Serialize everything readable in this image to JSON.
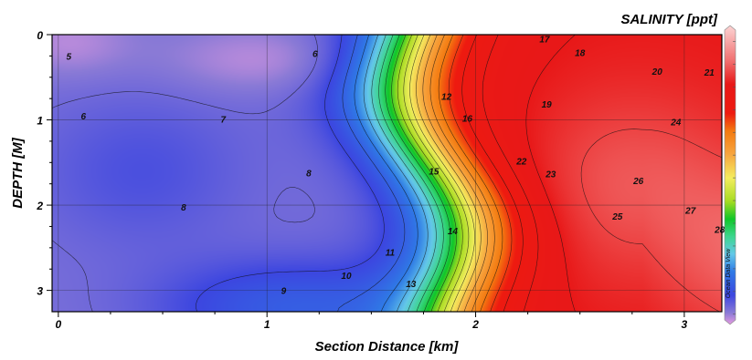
{
  "chart_data": {
    "type": "heatmap",
    "title": "SALINITY [ppt]",
    "xlabel": "Section Distance [km]",
    "ylabel": "DEPTH [M]",
    "xlim": [
      -0.03,
      3.18
    ],
    "ylim": [
      3.25,
      0
    ],
    "x_ticks": [
      0,
      1,
      2,
      3
    ],
    "x_tick_labels": [
      "0",
      "1",
      "2",
      "3"
    ],
    "y_ticks": [
      0,
      1,
      2,
      3
    ],
    "y_tick_labels": [
      "0",
      "1",
      "2",
      "3"
    ],
    "grid": true,
    "colorbar": {
      "position": "right",
      "range": [
        4.5,
        30
      ],
      "stops": [
        {
          "value": 4.5,
          "color": "#e69be0"
        },
        {
          "value": 5.5,
          "color": "#8a7ad6"
        },
        {
          "value": 7,
          "color": "#3c46e0"
        },
        {
          "value": 9,
          "color": "#2f7ae6"
        },
        {
          "value": 10.5,
          "color": "#64c8e8"
        },
        {
          "value": 12,
          "color": "#3dd68e"
        },
        {
          "value": 13.5,
          "color": "#10c628"
        },
        {
          "value": 15,
          "color": "#a6dc22"
        },
        {
          "value": 17,
          "color": "#f4ed5e"
        },
        {
          "value": 19,
          "color": "#f7a640"
        },
        {
          "value": 21,
          "color": "#f47a10"
        },
        {
          "value": 22.5,
          "color": "#ee1a10"
        },
        {
          "value": 25,
          "color": "#e81818"
        },
        {
          "value": 27,
          "color": "#f17070"
        },
        {
          "value": 30,
          "color": "#fcd4d4"
        }
      ]
    },
    "contour_labels": [
      {
        "text": "5",
        "x": 0.05,
        "y": 0.25
      },
      {
        "text": "6",
        "x": 1.23,
        "y": 0.22
      },
      {
        "text": "6",
        "x": 0.12,
        "y": 0.95
      },
      {
        "text": "7",
        "x": 0.79,
        "y": 0.99
      },
      {
        "text": "8",
        "x": 1.2,
        "y": 1.62
      },
      {
        "text": "8",
        "x": 0.6,
        "y": 2.02
      },
      {
        "text": "9",
        "x": 1.08,
        "y": 3.0
      },
      {
        "text": "10",
        "x": 1.38,
        "y": 2.82
      },
      {
        "text": "11",
        "x": 1.59,
        "y": 2.55
      },
      {
        "text": "12",
        "x": 1.86,
        "y": 0.72
      },
      {
        "text": "13",
        "x": 1.69,
        "y": 2.92
      },
      {
        "text": "14",
        "x": 1.89,
        "y": 2.3
      },
      {
        "text": "15",
        "x": 1.8,
        "y": 1.6
      },
      {
        "text": "16",
        "x": 1.96,
        "y": 0.98
      },
      {
        "text": "17",
        "x": 2.33,
        "y": 0.05
      },
      {
        "text": "18",
        "x": 2.5,
        "y": 0.21
      },
      {
        "text": "19",
        "x": 2.34,
        "y": 0.81
      },
      {
        "text": "20",
        "x": 2.87,
        "y": 0.43
      },
      {
        "text": "21",
        "x": 3.12,
        "y": 0.44
      },
      {
        "text": "22",
        "x": 2.22,
        "y": 1.48
      },
      {
        "text": "23",
        "x": 2.36,
        "y": 1.63
      },
      {
        "text": "24",
        "x": 2.96,
        "y": 1.02
      },
      {
        "text": "25",
        "x": 2.68,
        "y": 2.13
      },
      {
        "text": "26",
        "x": 2.78,
        "y": 1.71
      },
      {
        "text": "27",
        "x": 3.03,
        "y": 2.06
      },
      {
        "text": "28",
        "x": 3.17,
        "y": 2.28
      }
    ],
    "watermark": "Ocean Data View"
  }
}
